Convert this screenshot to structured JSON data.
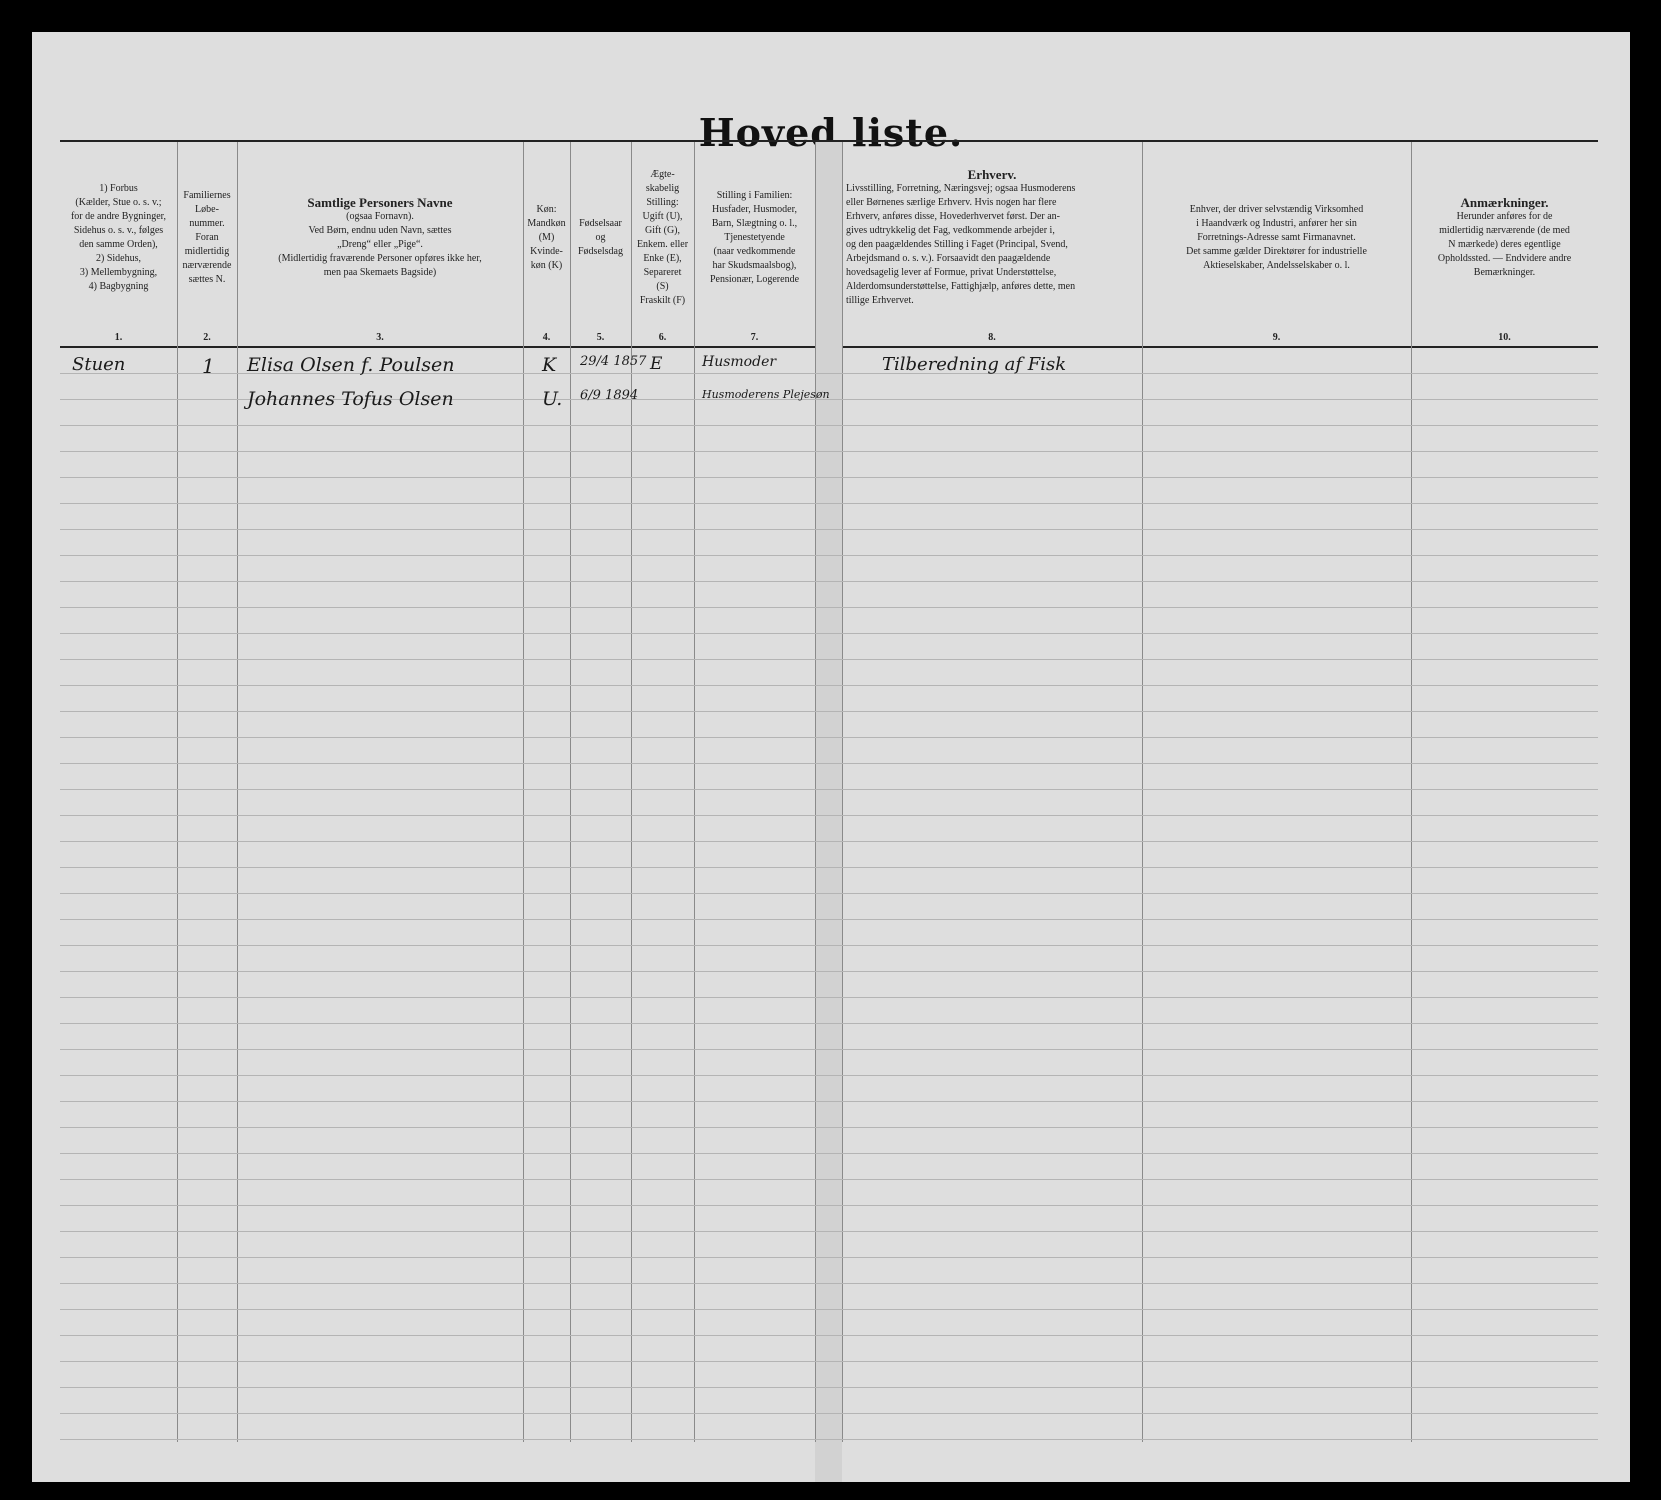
{
  "title": "Hoved liste.",
  "columns": [
    {
      "number": "1.",
      "lines": [
        "1) Forbus",
        "(Kælder, Stue o. s. v.;",
        "for de andre Bygninger,",
        "Sidehus o. s. v., følges",
        "den samme Orden),",
        "2) Sidehus,",
        "3) Mellembygning,",
        "4) Bagbygning"
      ]
    },
    {
      "number": "2.",
      "lines": [
        "Familiernes",
        "Løbe-",
        "nummer.",
        "Foran",
        "midlertidig",
        "nærværende",
        "sættes N."
      ]
    },
    {
      "number": "3.",
      "lines": [
        "Samtlige Personers Navne",
        "(ogsaa Fornavn).",
        "Ved Børn, endnu uden Navn, sættes",
        "„Dreng“ eller „Pige“.",
        "(Midlertidig fraværende Personer opføres ikke her,",
        "men paa Skemaets Bagside)"
      ]
    },
    {
      "number": "4.",
      "lines": [
        "Køn:",
        "Mandkøn",
        "(M)",
        "Kvinde-",
        "køn (K)"
      ]
    },
    {
      "number": "5.",
      "lines": [
        "Fødselsaar",
        "og",
        "Fødselsdag"
      ]
    },
    {
      "number": "6.",
      "lines": [
        "Ægte-",
        "skabelig",
        "Stilling:",
        "Ugift (U),",
        "Gift (G),",
        "Enkem. eller",
        "Enke (E),",
        "Separeret",
        "(S)",
        "Fraskilt (F)"
      ]
    },
    {
      "number": "7.",
      "lines": [
        "Stilling i Familien:",
        "Husfader, Husmoder,",
        "Barn, Slægtning o. l.,",
        "Tjenestetyende",
        "(naar vedkommende",
        "har Skudsmaalsbog),",
        "Pensionær, Logerende"
      ]
    },
    {
      "number": "8.",
      "lines": [
        "Erhverv.",
        "Livsstilling, Forretning, Næringsvej; ogsaa Husmoderens",
        "eller Børnenes særlige Erhverv. Hvis nogen har flere",
        "Erhverv, anføres disse, Hovederhvervet først. Der an-",
        "gives udtrykkelig det Fag, vedkommende arbejder i,",
        "og den paagældendes Stilling i Faget (Principal, Svend,",
        "Arbejdsmand o. s. v.). Forsaavidt den paagældende",
        "hovedsagelig lever af Formue, privat Understøttelse,",
        "Alderdomsunderstøttelse, Fattighjælp, anføres dette, men",
        "tillige Erhvervet."
      ]
    },
    {
      "number": "9.",
      "lines": [
        "Enhver, der driver selvstændig Virksomhed",
        "i Haandværk og Industri, anfører her sin",
        "Forretnings-Adresse samt Firmanavnet.",
        "Det samme gælder Direktører for industrielle",
        "Aktieselskaber, Andelsselskaber o. l."
      ]
    },
    {
      "number": "10.",
      "lines": [
        "Anmærkninger.",
        "Herunder anføres for de",
        "midlertidig nærværende (de med",
        "N mærkede) deres egentlige",
        "Opholdssted. — Endvidere andre",
        "Bemærkninger."
      ]
    }
  ],
  "entries": [
    {
      "floor": "Stuen",
      "family_no": "1",
      "name": "Elisa Olsen f. Poulsen",
      "sex": "K",
      "birth": "29/4 1857",
      "marital": "E",
      "family_role": "Husmoder",
      "occupation": "Tilberedning af Fisk"
    },
    {
      "floor": "",
      "family_no": "",
      "name": "Johannes Tofus Olsen",
      "sex": "U.",
      "birth": "6/9 1894",
      "marital": "",
      "family_role": "Husmoderens Plejesøn",
      "occupation": ""
    }
  ]
}
